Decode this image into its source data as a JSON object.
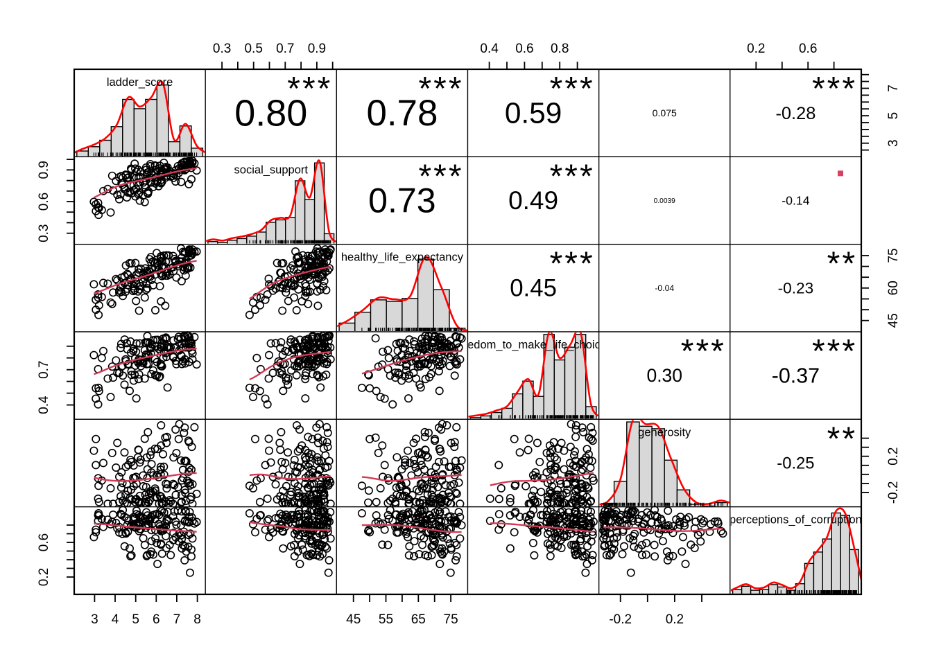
{
  "chart_data": {
    "type": "scatterplot-matrix",
    "title": "",
    "description": "Pairs correlation matrix: histograms with density curves on the diagonal, scatterplots with lowess smoothers in the lower triangle, Pearson correlations with significance stars in the upper triangle",
    "n_points": 150,
    "variables": [
      {
        "name": "ladder_score",
        "range": [
          2.2,
          8.2
        ],
        "skew": 0.85,
        "peak": 0.82,
        "hist": [
          0.08,
          0.14,
          0.23,
          0.42,
          0.8,
          0.67,
          0.8,
          1.0,
          0.21,
          0.43,
          0.12
        ]
      },
      {
        "name": "social_support",
        "range": [
          0.22,
          1.0
        ],
        "skew": 0.38,
        "peak": 0.93,
        "hist": [
          0.035,
          0.02,
          0.05,
          0.07,
          0.1,
          0.15,
          0.27,
          0.3,
          0.33,
          0.78,
          0.55,
          1.0,
          0.13
        ]
      },
      {
        "name": "healthy_life_expectancy",
        "range": [
          41,
          79
        ],
        "skew": 0.6,
        "peak": 0.83,
        "hist": [
          0.12,
          0.27,
          0.44,
          0.42,
          0.46,
          1.0,
          0.58,
          0.05
        ]
      },
      {
        "name": "freedom_to_make_life_choices",
        "range": [
          0.3,
          1.0
        ],
        "skew": 0.45,
        "peak": 0.97,
        "hist": [
          0.02,
          0.04,
          0.08,
          0.13,
          0.3,
          0.45,
          0.27,
          1.0,
          0.7,
          0.85,
          1.0,
          0.15
        ]
      },
      {
        "name": "generosity",
        "range": [
          -0.33,
          0.58
        ],
        "skew": 2.0,
        "peak": 0.97,
        "hist": [
          0.04,
          0.3,
          1.0,
          0.95,
          0.92,
          0.55,
          0.2,
          0.03,
          0.01,
          0.05
        ]
      },
      {
        "name": "perceptions_of_corruption",
        "range": [
          0.03,
          0.98
        ],
        "skew": 0.32,
        "peak": 0.93,
        "hist": [
          0.06,
          0.1,
          0.05,
          0.06,
          0.12,
          0.09,
          0.05,
          0.13,
          0.38,
          0.52,
          0.68,
          1.0,
          0.97,
          0.55
        ]
      }
    ],
    "correlations": [
      {
        "row": 0,
        "col": 1,
        "pair": [
          "ladder_score",
          "social_support"
        ],
        "display": "0.80",
        "r": 0.8,
        "stars": "***"
      },
      {
        "row": 0,
        "col": 2,
        "pair": [
          "ladder_score",
          "healthy_life_expectancy"
        ],
        "display": "0.78",
        "r": 0.78,
        "stars": "***"
      },
      {
        "row": 0,
        "col": 3,
        "pair": [
          "ladder_score",
          "freedom_to_make_life_choices"
        ],
        "display": "0.59",
        "r": 0.59,
        "stars": "***"
      },
      {
        "row": 0,
        "col": 4,
        "pair": [
          "ladder_score",
          "generosity"
        ],
        "display": "0.075",
        "r": 0.075,
        "stars": ""
      },
      {
        "row": 0,
        "col": 5,
        "pair": [
          "ladder_score",
          "perceptions_of_corruption"
        ],
        "display": "-0.28",
        "r": -0.28,
        "stars": "***"
      },
      {
        "row": 1,
        "col": 2,
        "pair": [
          "social_support",
          "healthy_life_expectancy"
        ],
        "display": "0.73",
        "r": 0.73,
        "stars": "***"
      },
      {
        "row": 1,
        "col": 3,
        "pair": [
          "social_support",
          "freedom_to_make_life_choices"
        ],
        "display": "0.49",
        "r": 0.49,
        "stars": "***"
      },
      {
        "row": 1,
        "col": 4,
        "pair": [
          "social_support",
          "generosity"
        ],
        "display": "0.0039",
        "r": 0.0039,
        "stars": ""
      },
      {
        "row": 1,
        "col": 5,
        "pair": [
          "social_support",
          "perceptions_of_corruption"
        ],
        "display": "-0.14",
        "r": -0.14,
        "stars": "."
      },
      {
        "row": 2,
        "col": 3,
        "pair": [
          "healthy_life_expectancy",
          "freedom_to_make_life_choices"
        ],
        "display": "0.45",
        "r": 0.45,
        "stars": "***"
      },
      {
        "row": 2,
        "col": 4,
        "pair": [
          "healthy_life_expectancy",
          "generosity"
        ],
        "display": "-0.04",
        "r": -0.04,
        "stars": ""
      },
      {
        "row": 2,
        "col": 5,
        "pair": [
          "healthy_life_expectancy",
          "perceptions_of_corruption"
        ],
        "display": "-0.23",
        "r": -0.23,
        "stars": "**"
      },
      {
        "row": 3,
        "col": 4,
        "pair": [
          "freedom_to_make_life_choices",
          "generosity"
        ],
        "display": "0.30",
        "r": 0.3,
        "stars": "***"
      },
      {
        "row": 3,
        "col": 5,
        "pair": [
          "freedom_to_make_life_choices",
          "perceptions_of_corruption"
        ],
        "display": "-0.37",
        "r": -0.37,
        "stars": "***"
      },
      {
        "row": 4,
        "col": 5,
        "pair": [
          "generosity",
          "perceptions_of_corruption"
        ],
        "display": "-0.25",
        "r": -0.25,
        "stars": "**"
      }
    ],
    "axes": {
      "top": [
        {
          "col": 1,
          "ticks": [
            0.3,
            0.4,
            0.5,
            0.6,
            0.7,
            0.8,
            0.9,
            1.0
          ],
          "labels": [
            {
              "v": 0.3,
              "text": "0.3"
            },
            {
              "v": 0.5,
              "text": "0.5"
            },
            {
              "v": 0.7,
              "text": "0.7"
            },
            {
              "v": 0.9,
              "text": "0.9"
            }
          ]
        },
        {
          "col": 3,
          "ticks": [
            0.4,
            0.5,
            0.6,
            0.7,
            0.8,
            0.9
          ],
          "labels": [
            {
              "v": 0.4,
              "text": "0.4"
            },
            {
              "v": 0.6,
              "text": "0.6"
            },
            {
              "v": 0.8,
              "text": "0.8"
            }
          ]
        },
        {
          "col": 5,
          "ticks": [
            0.2,
            0.4,
            0.6,
            0.8
          ],
          "labels": [
            {
              "v": 0.2,
              "text": "0.2"
            },
            {
              "v": 0.6,
              "text": "0.6"
            }
          ]
        }
      ],
      "bottom": [
        {
          "col": 0,
          "ticks": [
            3,
            4,
            5,
            6,
            7,
            8
          ],
          "labels": [
            {
              "v": 3,
              "text": "3"
            },
            {
              "v": 4,
              "text": "4"
            },
            {
              "v": 5,
              "text": "5"
            },
            {
              "v": 6,
              "text": "6"
            },
            {
              "v": 7,
              "text": "7"
            },
            {
              "v": 8,
              "text": "8"
            }
          ]
        },
        {
          "col": 2,
          "ticks": [
            45,
            50,
            55,
            60,
            65,
            70,
            75
          ],
          "labels": [
            {
              "v": 45,
              "text": "45"
            },
            {
              "v": 55,
              "text": "55"
            },
            {
              "v": 65,
              "text": "65"
            },
            {
              "v": 75,
              "text": "75"
            }
          ]
        },
        {
          "col": 4,
          "ticks": [
            -0.2,
            0,
            0.2,
            0.4
          ],
          "labels": [
            {
              "v": -0.2,
              "text": "-0.2"
            },
            {
              "v": 0.2,
              "text": "0.2"
            }
          ]
        }
      ],
      "left": [
        {
          "row": 1,
          "ticks": [
            0.3,
            0.4,
            0.5,
            0.6,
            0.7,
            0.8,
            0.9,
            1.0
          ],
          "labels": [
            {
              "v": 0.3,
              "text": "0.3"
            },
            {
              "v": 0.6,
              "text": "0.6"
            },
            {
              "v": 0.9,
              "text": "0.9"
            }
          ]
        },
        {
          "row": 3,
          "ticks": [
            0.4,
            0.5,
            0.6,
            0.7,
            0.8,
            0.9
          ],
          "labels": [
            {
              "v": 0.4,
              "text": "0.4"
            },
            {
              "v": 0.7,
              "text": "0.7"
            }
          ]
        },
        {
          "row": 5,
          "ticks": [
            0.2,
            0.3,
            0.4,
            0.5,
            0.6,
            0.7,
            0.8
          ],
          "labels": [
            {
              "v": 0.2,
              "text": "0.2"
            },
            {
              "v": 0.6,
              "text": "0.6"
            }
          ]
        }
      ],
      "right": [
        {
          "row": 0,
          "ticks": [
            2.5,
            3,
            3.5,
            4,
            4.5,
            5,
            5.5,
            6,
            6.5,
            7,
            7.5,
            8
          ],
          "labels": [
            {
              "v": 3,
              "text": "3"
            },
            {
              "v": 5,
              "text": "5"
            },
            {
              "v": 7,
              "text": "7"
            }
          ]
        },
        {
          "row": 2,
          "ticks": [
            45,
            50,
            55,
            60,
            65,
            70,
            75
          ],
          "labels": [
            {
              "v": 45,
              "text": "45"
            },
            {
              "v": 60,
              "text": "60"
            },
            {
              "v": 75,
              "text": "75"
            }
          ]
        },
        {
          "row": 4,
          "ticks": [
            -0.2,
            -0.1,
            0,
            0.1,
            0.2,
            0.3,
            0.4
          ],
          "labels": [
            {
              "v": -0.2,
              "text": "-0.2"
            },
            {
              "v": 0.2,
              "text": "0.2"
            }
          ]
        }
      ]
    },
    "colors": {
      "stars": "#D8415F",
      "significance_dot": "#D8415F",
      "lowess": "#D23B55",
      "density": "#FF0000",
      "hist_fill": "#D8D8D8",
      "points": "#000000",
      "border": "#000000",
      "background": "#FFFFFF"
    }
  }
}
